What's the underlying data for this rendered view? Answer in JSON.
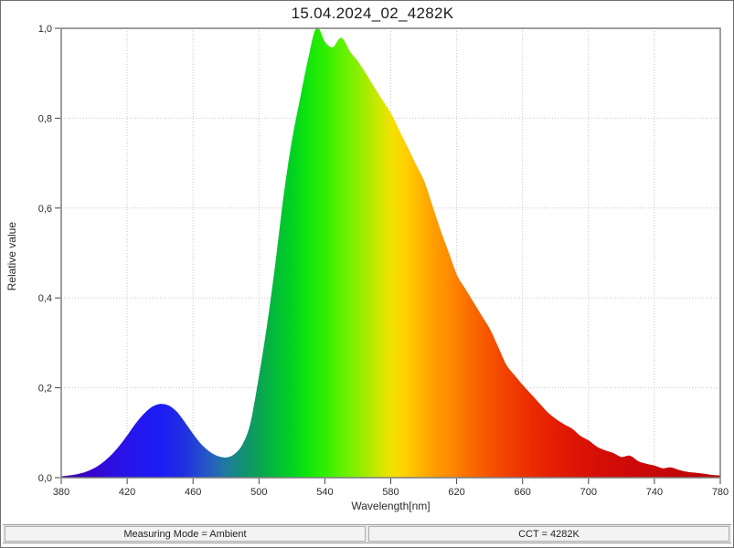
{
  "window": {
    "title": "15.04.2024_02_4282K"
  },
  "status_bar": {
    "measuring_mode": "Measuring Mode = Ambient",
    "cct": "CCT = 4282K"
  },
  "colors": {
    "grid": "#c9c9c9",
    "plot_border": "#7d7d7d",
    "tick": "#444444",
    "tick_label": "#2b2b2b"
  },
  "chart_data": {
    "type": "area",
    "title": "15.04.2024_02_4282K",
    "xlabel": "Wavelength[nm]",
    "ylabel": "Relative value",
    "xlim": [
      380,
      780
    ],
    "ylim": [
      0,
      1.0
    ],
    "grid": "dotted",
    "legend": "none",
    "xticks": [
      380,
      420,
      460,
      500,
      540,
      580,
      620,
      660,
      700,
      740,
      780
    ],
    "ytick_values": [
      1.0,
      0.8,
      0.6,
      0.4,
      0.2,
      0.0
    ],
    "ytick_labels": [
      "1,0",
      "0,8",
      "0,6",
      "0,4",
      "0,2",
      "0,0"
    ],
    "x": [
      380,
      385,
      390,
      395,
      400,
      405,
      410,
      415,
      420,
      425,
      430,
      435,
      440,
      445,
      450,
      455,
      460,
      465,
      470,
      475,
      480,
      485,
      490,
      495,
      500,
      505,
      510,
      515,
      520,
      525,
      530,
      535,
      540,
      545,
      550,
      555,
      560,
      565,
      570,
      575,
      580,
      585,
      590,
      595,
      600,
      605,
      610,
      615,
      620,
      625,
      630,
      635,
      640,
      645,
      650,
      655,
      660,
      665,
      670,
      675,
      680,
      685,
      690,
      695,
      700,
      705,
      710,
      715,
      720,
      725,
      730,
      735,
      740,
      745,
      750,
      755,
      760,
      765,
      770,
      775,
      780
    ],
    "values": [
      0.002,
      0.004,
      0.007,
      0.012,
      0.02,
      0.032,
      0.048,
      0.068,
      0.092,
      0.118,
      0.14,
      0.156,
      0.163,
      0.16,
      0.146,
      0.122,
      0.096,
      0.073,
      0.057,
      0.047,
      0.044,
      0.051,
      0.072,
      0.12,
      0.22,
      0.335,
      0.47,
      0.62,
      0.745,
      0.84,
      0.93,
      1.0,
      0.968,
      0.957,
      0.978,
      0.948,
      0.925,
      0.897,
      0.867,
      0.838,
      0.81,
      0.772,
      0.735,
      0.697,
      0.66,
      0.605,
      0.55,
      0.5,
      0.45,
      0.42,
      0.39,
      0.36,
      0.33,
      0.29,
      0.25,
      0.227,
      0.205,
      0.185,
      0.165,
      0.145,
      0.13,
      0.118,
      0.108,
      0.092,
      0.082,
      0.068,
      0.06,
      0.054,
      0.045,
      0.048,
      0.036,
      0.03,
      0.026,
      0.02,
      0.022,
      0.016,
      0.012,
      0.01,
      0.008,
      0.005,
      0.004
    ],
    "annotations": {
      "blue_peak": {
        "nm": 440,
        "value": 0.163
      },
      "main_peak": {
        "nm": 535,
        "value": 1.0
      },
      "valley": {
        "nm": 480,
        "value": 0.044
      }
    },
    "gradient_stops": [
      {
        "nm": 380,
        "color": "#3c00a8"
      },
      {
        "nm": 395,
        "color": "#3804c6"
      },
      {
        "nm": 410,
        "color": "#2f0ee0"
      },
      {
        "nm": 425,
        "color": "#2417ee"
      },
      {
        "nm": 440,
        "color": "#1c1cf4"
      },
      {
        "nm": 455,
        "color": "#2130e0"
      },
      {
        "nm": 470,
        "color": "#265cc2"
      },
      {
        "nm": 480,
        "color": "#1f7b9e"
      },
      {
        "nm": 490,
        "color": "#128f74"
      },
      {
        "nm": 500,
        "color": "#0ba254"
      },
      {
        "nm": 510,
        "color": "#04bc38"
      },
      {
        "nm": 520,
        "color": "#00d222"
      },
      {
        "nm": 530,
        "color": "#12e60c"
      },
      {
        "nm": 540,
        "color": "#2fee00"
      },
      {
        "nm": 550,
        "color": "#5cf200"
      },
      {
        "nm": 560,
        "color": "#8cee00"
      },
      {
        "nm": 570,
        "color": "#c0e800"
      },
      {
        "nm": 580,
        "color": "#f0e200"
      },
      {
        "nm": 588,
        "color": "#ffd200"
      },
      {
        "nm": 596,
        "color": "#ffbb00"
      },
      {
        "nm": 605,
        "color": "#ffa000"
      },
      {
        "nm": 615,
        "color": "#ff8c00"
      },
      {
        "nm": 625,
        "color": "#fb7300"
      },
      {
        "nm": 635,
        "color": "#f75e00"
      },
      {
        "nm": 645,
        "color": "#f34a00"
      },
      {
        "nm": 655,
        "color": "#ef3a00"
      },
      {
        "nm": 665,
        "color": "#eb2c00"
      },
      {
        "nm": 680,
        "color": "#e31d02"
      },
      {
        "nm": 695,
        "color": "#db1305"
      },
      {
        "nm": 710,
        "color": "#d40d07"
      },
      {
        "nm": 730,
        "color": "#cc0808"
      },
      {
        "nm": 750,
        "color": "#c40707"
      },
      {
        "nm": 780,
        "color": "#b90505"
      }
    ]
  }
}
